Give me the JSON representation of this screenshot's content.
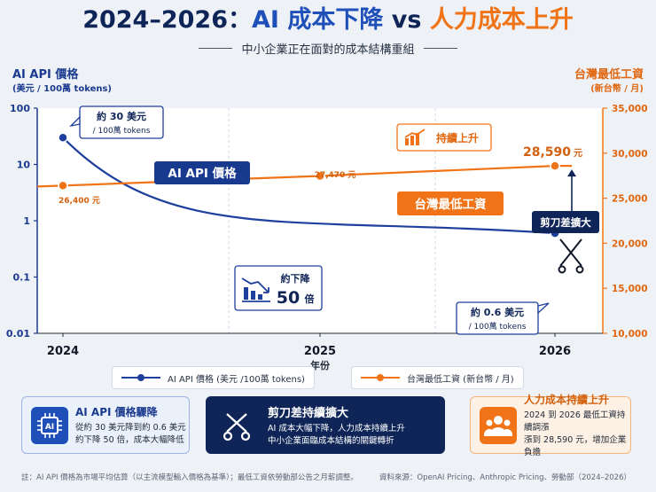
{
  "header": {
    "title_part1": "2024–2026：",
    "title_part2": "AI 成本下降",
    "title_part3": " vs ",
    "title_part4": "人力成本上升",
    "subtitle": "中小企業正在面對的成本結構重組"
  },
  "chart_data": {
    "type": "line",
    "x": [
      "2024",
      "2025",
      "2026"
    ],
    "xlabel": "年份",
    "left_axis": {
      "title": "AI API 價格",
      "unit": "(美元 / 100萬 tokens)",
      "scale": "log",
      "ticks": [
        "100",
        "10",
        "1",
        "0.1",
        "0.01"
      ],
      "range": [
        0.01,
        100
      ]
    },
    "right_axis": {
      "title": "台灣最低工資",
      "unit": "(新台幣 / 月)",
      "scale": "linear",
      "ticks": [
        "35,000",
        "30,000",
        "25,000",
        "20,000",
        "15,000",
        "10,000"
      ],
      "range": [
        10000,
        35000
      ]
    },
    "series": [
      {
        "name": "AI API 價格 (美元 /100萬 tokens)",
        "axis": "left",
        "color": "#1f3f9e",
        "points": [
          [
            2024,
            30
          ],
          [
            2026,
            0.6
          ]
        ]
      },
      {
        "name": "台灣最低工資 (新台幣 / 月)",
        "axis": "right",
        "color": "#f07417",
        "points": [
          [
            2024,
            26400
          ],
          [
            2025,
            27470
          ],
          [
            2026,
            28590
          ]
        ]
      }
    ],
    "grid": true,
    "legend": "bottom"
  },
  "annotations": {
    "ai_start_line1": "約 30 美元",
    "ai_start_line2": "/ 100萬 tokens",
    "ai_end_line1": "約 0.6 美元",
    "ai_end_line2": "/ 100萬 tokens",
    "ai_series_tag": "AI API 價格",
    "wage_series_tag": "台灣最低工資",
    "wage_2024": "26,400 元",
    "wage_2025": "27,470 元",
    "wage_2026_value": "28,590",
    "wage_2026_unit": "元",
    "trend_up": "持續上升",
    "drop_line1": "約下降",
    "drop_line2_num": "50",
    "drop_line2_unit": "倍",
    "scissors_gap": "剪刀差擴大"
  },
  "cards": [
    {
      "title": "AI API 價格驟降",
      "text_line1": "從約 30 美元降到約 0.6 美元",
      "text_line2": "約下降 50 倍，成本大幅降低",
      "icon": "ai-chip-icon"
    },
    {
      "title": "剪刀差持續擴大",
      "text_line1": "AI 成本大幅下降，人力成本持續上升",
      "text_line2": "中小企業面臨成本結構的關鍵轉折",
      "icon": "scissors-icon"
    },
    {
      "title": "人力成本持續上升",
      "text_line1": "2024 到 2026 最低工資持續調漲",
      "text_line2": "漲到 28,590 元，增加企業負擔",
      "icon": "people-icon"
    }
  ],
  "footer": {
    "note": "註：AI API 價格為市場平均估算（以主流模型輸入價格為基準）；最低工資依勞動部公告之月薪調整。",
    "source": "資料來源：OpenAI Pricing、Anthropic Pricing、勞動部（2024–2026）"
  },
  "colors": {
    "navy": "#0f2557",
    "blue": "#1f3f9e",
    "orange": "#f07417"
  }
}
